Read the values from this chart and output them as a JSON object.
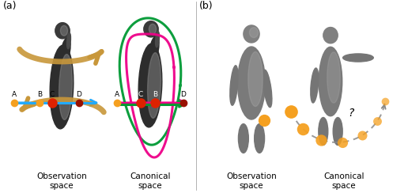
{
  "fig_width": 5.16,
  "fig_height": 2.44,
  "dpi": 100,
  "bg_color": "#ffffff",
  "label_a": "(a)",
  "label_b": "(b)",
  "obs_space": "Observation\nspace",
  "can_space": "Canonical\nspace",
  "orange_color": "#F5A020",
  "red_color": "#DD2200",
  "dark_red_color": "#991100",
  "cyan_color": "#22AAFF",
  "magenta_color": "#EE0088",
  "green_color": "#009933",
  "tan_color": "#C8973A",
  "gray_color": "#888888",
  "body_dark": "#2a2a2a",
  "body_light": "#cccccc",
  "font_size": 7.5
}
